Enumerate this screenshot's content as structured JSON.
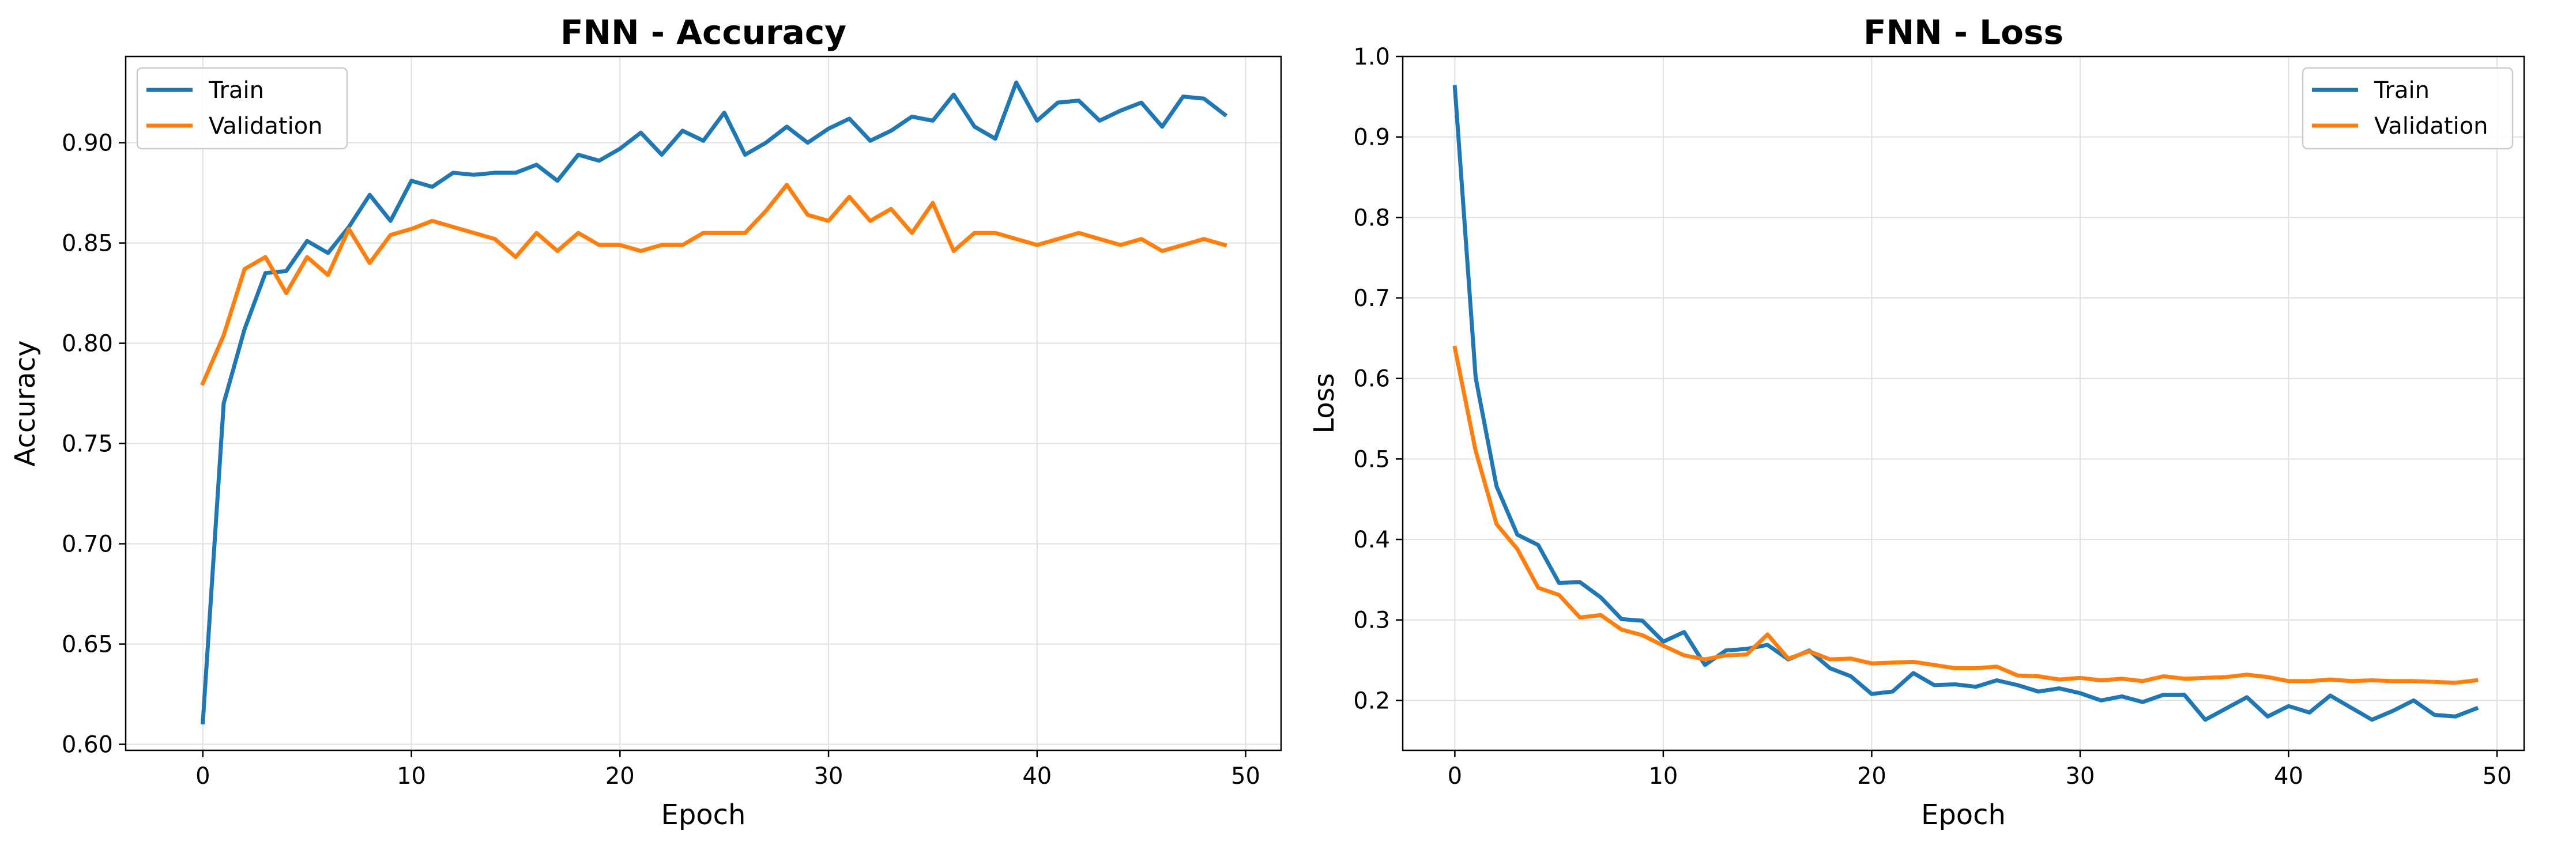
{
  "chart_data": [
    {
      "type": "line",
      "title": "FNN - Accuracy",
      "xlabel": "Epoch",
      "ylabel": "Accuracy",
      "xlim": [
        -3.7,
        51.7
      ],
      "ylim": [
        0.597,
        0.943
      ],
      "xticks": [
        0,
        10,
        20,
        30,
        40,
        50
      ],
      "yticks": [
        0.6,
        0.65,
        0.7,
        0.75,
        0.8,
        0.85,
        0.9
      ],
      "ytick_decimals": 2,
      "grid": true,
      "legend_position": "upper-left",
      "x": [
        0,
        1,
        2,
        3,
        4,
        5,
        6,
        7,
        8,
        9,
        10,
        11,
        12,
        13,
        14,
        15,
        16,
        17,
        18,
        19,
        20,
        21,
        22,
        23,
        24,
        25,
        26,
        27,
        28,
        29,
        30,
        31,
        32,
        33,
        34,
        35,
        36,
        37,
        38,
        39,
        40,
        41,
        42,
        43,
        44,
        45,
        46,
        47,
        48,
        49
      ],
      "series": [
        {
          "name": "Train",
          "color": "#1f77b4",
          "values": [
            0.611,
            0.77,
            0.807,
            0.835,
            0.836,
            0.851,
            0.845,
            0.858,
            0.874,
            0.861,
            0.881,
            0.878,
            0.885,
            0.884,
            0.885,
            0.885,
            0.889,
            0.881,
            0.894,
            0.891,
            0.897,
            0.905,
            0.894,
            0.906,
            0.901,
            0.915,
            0.894,
            0.9,
            0.908,
            0.9,
            0.907,
            0.912,
            0.901,
            0.906,
            0.913,
            0.911,
            0.924,
            0.908,
            0.902,
            0.93,
            0.911,
            0.92,
            0.921,
            0.911,
            0.916,
            0.92,
            0.908,
            0.923,
            0.922,
            0.914
          ]
        },
        {
          "name": "Validation",
          "color": "#ff7f0e",
          "values": [
            0.78,
            0.804,
            0.837,
            0.843,
            0.825,
            0.843,
            0.834,
            0.857,
            0.84,
            0.854,
            0.857,
            0.861,
            0.858,
            0.855,
            0.852,
            0.843,
            0.855,
            0.846,
            0.855,
            0.849,
            0.849,
            0.846,
            0.849,
            0.849,
            0.855,
            0.855,
            0.855,
            0.866,
            0.879,
            0.864,
            0.861,
            0.873,
            0.861,
            0.867,
            0.855,
            0.87,
            0.846,
            0.855,
            0.855,
            0.852,
            0.849,
            0.852,
            0.855,
            0.852,
            0.849,
            0.852,
            0.846,
            0.849,
            0.852,
            0.849
          ]
        }
      ]
    },
    {
      "type": "line",
      "title": "FNN - Loss",
      "xlabel": "Epoch",
      "ylabel": "Loss",
      "xlim": [
        -2.5,
        51.3
      ],
      "ylim": [
        0.138,
        1.0
      ],
      "xticks": [
        0,
        10,
        20,
        30,
        40,
        50
      ],
      "yticks": [
        0.2,
        0.3,
        0.4,
        0.5,
        0.6,
        0.7,
        0.8,
        0.9,
        1.0
      ],
      "ytick_decimals": 1,
      "grid": true,
      "legend_position": "upper-right",
      "x": [
        0,
        1,
        2,
        3,
        4,
        5,
        6,
        7,
        8,
        9,
        10,
        11,
        12,
        13,
        14,
        15,
        16,
        17,
        18,
        19,
        20,
        21,
        22,
        23,
        24,
        25,
        26,
        27,
        28,
        29,
        30,
        31,
        32,
        33,
        34,
        35,
        36,
        37,
        38,
        39,
        40,
        41,
        42,
        43,
        44,
        45,
        46,
        47,
        48,
        49
      ],
      "series": [
        {
          "name": "Train",
          "color": "#1f77b4",
          "values": [
            0.962,
            0.601,
            0.466,
            0.406,
            0.393,
            0.346,
            0.347,
            0.328,
            0.301,
            0.299,
            0.273,
            0.285,
            0.244,
            0.262,
            0.264,
            0.269,
            0.251,
            0.262,
            0.24,
            0.23,
            0.208,
            0.211,
            0.234,
            0.219,
            0.22,
            0.217,
            0.225,
            0.219,
            0.211,
            0.215,
            0.209,
            0.2,
            0.205,
            0.198,
            0.207,
            0.207,
            0.176,
            0.19,
            0.204,
            0.18,
            0.193,
            0.185,
            0.206,
            0.191,
            0.176,
            0.187,
            0.2,
            0.182,
            0.18,
            0.19
          ]
        },
        {
          "name": "Validation",
          "color": "#ff7f0e",
          "values": [
            0.638,
            0.51,
            0.419,
            0.388,
            0.34,
            0.331,
            0.303,
            0.306,
            0.288,
            0.281,
            0.268,
            0.256,
            0.251,
            0.256,
            0.257,
            0.282,
            0.252,
            0.261,
            0.251,
            0.252,
            0.246,
            0.247,
            0.248,
            0.244,
            0.24,
            0.24,
            0.242,
            0.231,
            0.23,
            0.226,
            0.228,
            0.225,
            0.227,
            0.224,
            0.23,
            0.227,
            0.228,
            0.229,
            0.232,
            0.229,
            0.224,
            0.224,
            0.226,
            0.224,
            0.225,
            0.224,
            0.224,
            0.223,
            0.222,
            0.225
          ]
        }
      ]
    }
  ]
}
